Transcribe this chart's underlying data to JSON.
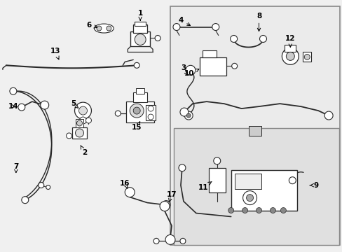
{
  "bg_color": "#f0f0f0",
  "panel_color": "#e8e8e8",
  "panel2_color": "#dedede",
  "line_color": "#2a2a2a",
  "border_color": "#999999",
  "figsize": [
    4.89,
    3.6
  ],
  "dpi": 100
}
